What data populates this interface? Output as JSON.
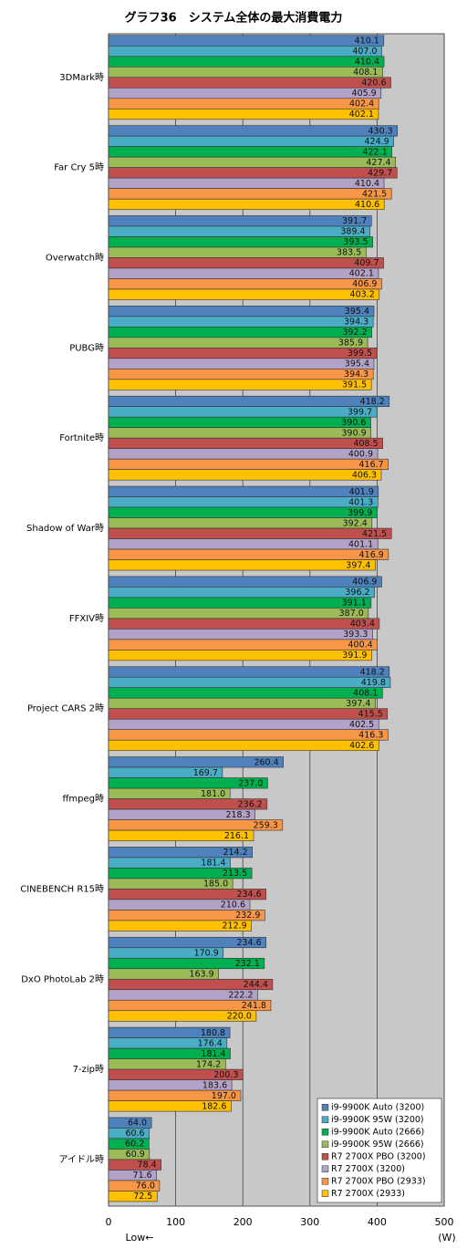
{
  "chart_data": {
    "type": "hbar",
    "title": "グラフ36　システム全体の最大消費電力",
    "xlabel": "Low←",
    "unit": "(W)",
    "categories": [
      "3DMark時",
      "Far Cry 5時",
      "Overwatch時",
      "PUBG時",
      "Fortnite時",
      "Shadow of War時",
      "FFXIV時",
      "Project CARS 2時",
      "ffmpeg時",
      "CINEBENCH R15時",
      "DxO PhotoLab 2時",
      "7-zip時",
      "アイドル時"
    ],
    "xlim": [
      0,
      500
    ],
    "xticks": [
      0,
      100,
      200,
      300,
      400,
      500
    ],
    "grid": true,
    "legend": "lower right",
    "series": [
      {
        "name": "i9-9900K Auto (3200)",
        "color": "#4f81bd",
        "values": [
          410.1,
          430.3,
          391.7,
          395.4,
          418.2,
          401.9,
          406.9,
          418.2,
          260.4,
          214.2,
          234.6,
          180.8,
          64.0
        ],
        "value_labels": [
          "410.1",
          "430.3",
          "391.7",
          "395.4",
          "418.2",
          "401.9",
          "406.9",
          "418.2",
          "260.4",
          "214.2",
          "234.6",
          "180.8",
          "64.0"
        ]
      },
      {
        "name": "i9-9900K 95W (3200)",
        "color": "#4bacc6",
        "values": [
          407.0,
          424.9,
          389.4,
          394.3,
          399.7,
          401.3,
          396.2,
          419.8,
          169.7,
          181.4,
          170.9,
          176.4,
          60.6
        ],
        "value_labels": [
          "407.0",
          "424.9",
          "389.4",
          "394.3",
          "399.7",
          "401.3",
          "396.2",
          "419.8",
          "169.7",
          "181.4",
          "170.9",
          "176.4",
          "60.6"
        ]
      },
      {
        "name": "i9-9900K Auto (2666)",
        "color": "#00b050",
        "values": [
          410.4,
          422.1,
          393.5,
          392.2,
          390.6,
          399.9,
          391.1,
          408.1,
          237.0,
          213.5,
          232.1,
          181.4,
          60.2
        ],
        "value_labels": [
          "410.4",
          "422.1",
          "393.5",
          "392.2",
          "390.6",
          "399.9",
          "391.1",
          "408.1",
          "237.0",
          "213.5",
          "232.1",
          "181.4",
          "60.2"
        ]
      },
      {
        "name": "i9-9900K 95W (2666)",
        "color": "#9bbb59",
        "values": [
          408.1,
          427.4,
          383.5,
          385.9,
          390.9,
          392.4,
          387.0,
          397.4,
          181.0,
          185.0,
          163.9,
          174.2,
          60.9
        ],
        "value_labels": [
          "408.1",
          "427.4",
          "383.5",
          "385.9",
          "390.9",
          "392.4",
          "387.0",
          "397.4",
          "181.0",
          "185.0",
          "163.9",
          "174.2",
          "60.9"
        ]
      },
      {
        "name": "R7 2700X PBO (3200)",
        "color": "#c0504d",
        "values": [
          420.6,
          429.7,
          409.7,
          399.5,
          408.5,
          421.5,
          403.4,
          415.5,
          236.2,
          234.6,
          244.4,
          200.3,
          78.4
        ],
        "value_labels": [
          "420.6",
          "429.7",
          "409.7",
          "399.5",
          "408.5",
          "421.5",
          "403.4",
          "415.5",
          "236.2",
          "234.6",
          "244.4",
          "200.3",
          "78.4"
        ]
      },
      {
        "name": "R7 2700X (3200)",
        "color": "#b3a2c7",
        "values": [
          405.9,
          410.4,
          402.1,
          395.4,
          400.9,
          401.1,
          393.3,
          402.5,
          218.3,
          210.6,
          222.2,
          183.6,
          71.6
        ],
        "value_labels": [
          "405.9",
          "410.4",
          "402.1",
          "395.4",
          "400.9",
          "401.1",
          "393.3",
          "402.5",
          "218.3",
          "210.6",
          "222.2",
          "183.6",
          "71.6"
        ]
      },
      {
        "name": "R7 2700X PBO (2933)",
        "color": "#f79646",
        "values": [
          402.4,
          421.5,
          406.9,
          394.3,
          416.7,
          416.9,
          400.4,
          416.3,
          259.3,
          232.9,
          241.8,
          197.0,
          76.0
        ],
        "value_labels": [
          "402.4",
          "421.5",
          "406.9",
          "394.3",
          "416.7",
          "416.9",
          "400.4",
          "416.3",
          "259.3",
          "232.9",
          "241.8",
          "197.0",
          "76.0"
        ]
      },
      {
        "name": "R7 2700X (2933)",
        "color": "#ffc000",
        "values": [
          402.1,
          410.6,
          403.2,
          391.5,
          406.3,
          397.4,
          391.9,
          402.6,
          216.1,
          212.9,
          220.0,
          182.6,
          72.5
        ],
        "value_labels": [
          "402.1",
          "410.6",
          "403.2",
          "391.5",
          "406.3",
          "397.4",
          "391.9",
          "402.6",
          "216.1",
          "212.9",
          "220.0",
          "182.6",
          "72.5"
        ]
      }
    ]
  }
}
